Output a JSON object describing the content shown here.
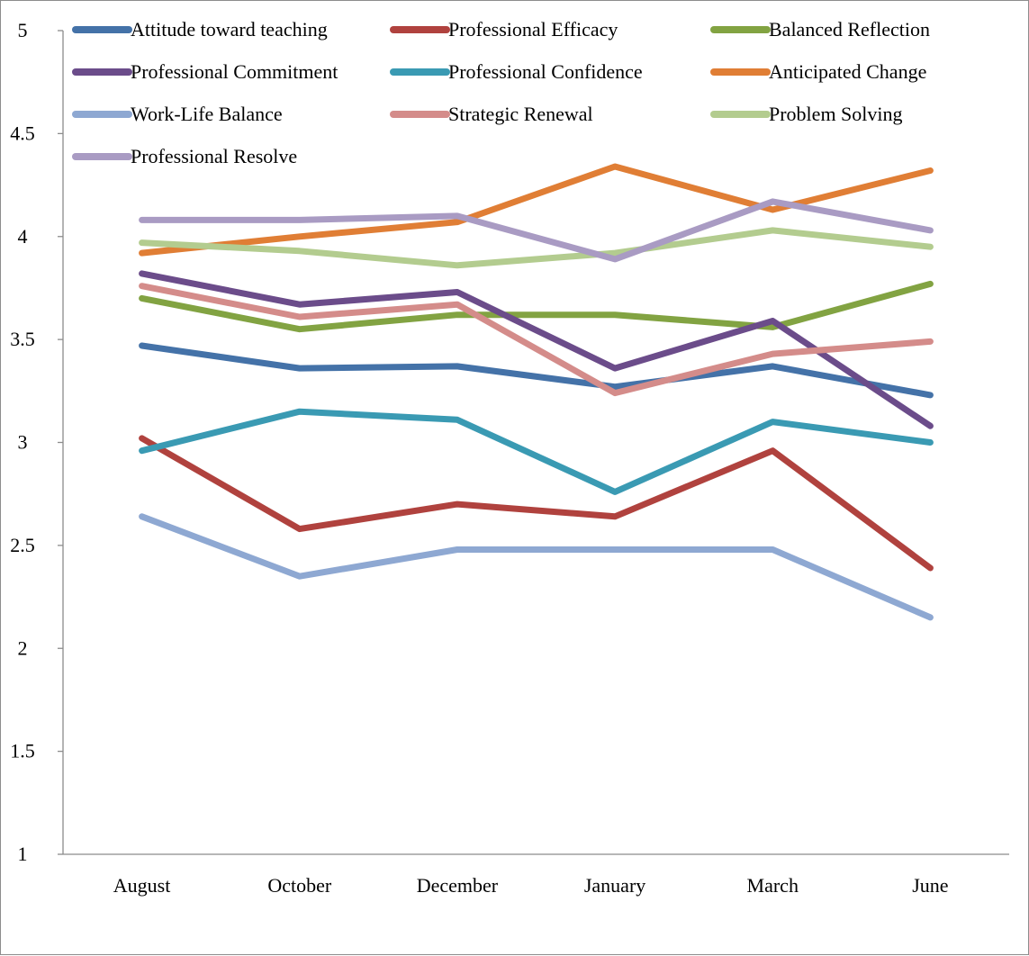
{
  "chart_data": {
    "type": "line",
    "title": "",
    "xlabel": "",
    "ylabel": "",
    "ylim": [
      1,
      5
    ],
    "y_ticks": [
      "1",
      "1.5",
      "2",
      "2.5",
      "3",
      "3.5",
      "4",
      "4.5",
      "5"
    ],
    "grid": false,
    "legend_position": "top",
    "categories": [
      "August",
      "October",
      "December",
      "January",
      "March",
      "June"
    ],
    "series": [
      {
        "name": "Attitude toward teaching",
        "color": "#4472A8",
        "values": [
          3.47,
          3.36,
          3.37,
          3.27,
          3.37,
          3.23
        ]
      },
      {
        "name": "Professional Efficacy",
        "color": "#B0423E",
        "values": [
          3.02,
          2.58,
          2.7,
          2.64,
          2.96,
          2.39
        ]
      },
      {
        "name": "Balanced Reflection",
        "color": "#82A342",
        "values": [
          3.7,
          3.55,
          3.62,
          3.62,
          3.56,
          3.77
        ]
      },
      {
        "name": "Professional Commitment",
        "color": "#6B4C8A",
        "values": [
          3.82,
          3.67,
          3.73,
          3.36,
          3.59,
          3.08
        ]
      },
      {
        "name": "Professional Confidence",
        "color": "#3A9AB3",
        "values": [
          2.96,
          3.15,
          3.11,
          2.76,
          3.1,
          3.0
        ]
      },
      {
        "name": "Anticipated Change",
        "color": "#E07E35",
        "values": [
          3.92,
          4.0,
          4.07,
          4.34,
          4.13,
          4.32
        ]
      },
      {
        "name": "Work-Life Balance",
        "color": "#8EA8D2",
        "values": [
          2.64,
          2.35,
          2.48,
          2.48,
          2.48,
          2.15
        ]
      },
      {
        "name": "Strategic Renewal",
        "color": "#D48C8A",
        "values": [
          3.76,
          3.61,
          3.67,
          3.24,
          3.43,
          3.49
        ]
      },
      {
        "name": "Problem Solving",
        "color": "#B3CC8F",
        "values": [
          3.97,
          3.93,
          3.86,
          3.92,
          4.03,
          3.95
        ]
      },
      {
        "name": "Professional Resolve",
        "color": "#A99BC3",
        "values": [
          4.08,
          4.08,
          4.1,
          3.89,
          4.17,
          4.03
        ]
      }
    ]
  }
}
